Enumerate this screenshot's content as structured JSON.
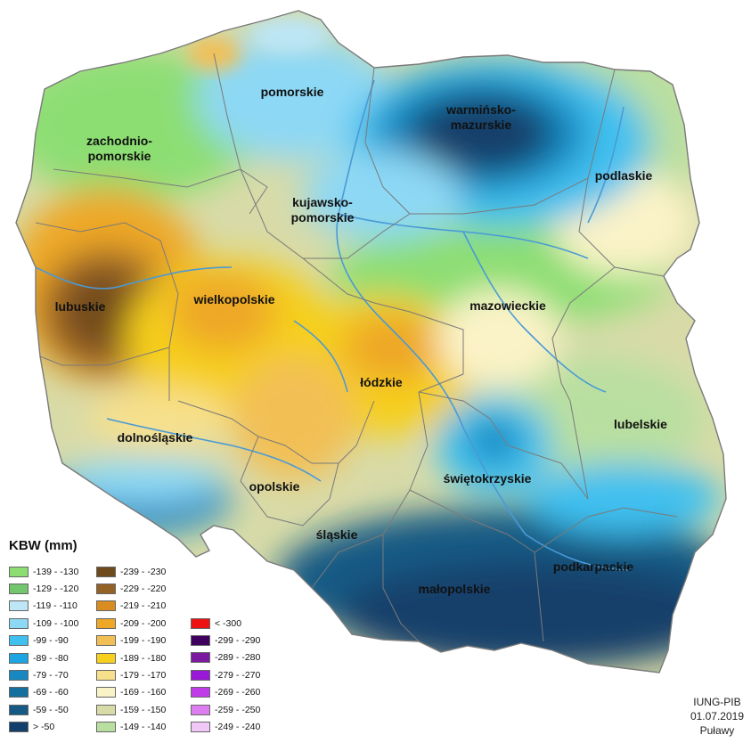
{
  "legend": {
    "title": "KBW (mm)",
    "columns": [
      [
        {
          "label": "-139 - -130",
          "color": "#8cde73"
        },
        {
          "label": "-129 - -120",
          "color": "#74c66c"
        },
        {
          "label": "-119 - -110",
          "color": "#bde6f7"
        },
        {
          "label": "-109 - -100",
          "color": "#8dd8f5"
        },
        {
          "label": "-99 - -90",
          "color": "#3fc0ef"
        },
        {
          "label": "-89 - -80",
          "color": "#1ca5e0"
        },
        {
          "label": "-79 - -70",
          "color": "#1888c0"
        },
        {
          "label": "-69 - -60",
          "color": "#16709f"
        },
        {
          "label": "-59 - -50",
          "color": "#155a84"
        },
        {
          "label": "> -50",
          "color": "#12406a"
        }
      ],
      [
        {
          "label": "-239 - -230",
          "color": "#6f4a1c"
        },
        {
          "label": "-229 - -220",
          "color": "#946126"
        },
        {
          "label": "-219 - -210",
          "color": "#d98c20"
        },
        {
          "label": "-209 - -200",
          "color": "#eea825"
        },
        {
          "label": "-199 - -190",
          "color": "#f2bf55"
        },
        {
          "label": "-189 - -180",
          "color": "#f6cf1f"
        },
        {
          "label": "-179 - -170",
          "color": "#f7e08c"
        },
        {
          "label": "-169 - -160",
          "color": "#fbf3c8"
        },
        {
          "label": "-159 - -150",
          "color": "#d8dba8"
        },
        {
          "label": "-149 - -140",
          "color": "#b9dfa0"
        }
      ],
      [
        {
          "label": "< -300",
          "color": "#ee1111"
        },
        {
          "label": "-299 - -290",
          "color": "#3f0060"
        },
        {
          "label": "-289 - -280",
          "color": "#7a1aa0"
        },
        {
          "label": "-279 - -270",
          "color": "#9a18d8"
        },
        {
          "label": "-269 - -260",
          "color": "#c03ce8"
        },
        {
          "label": "-259 - -250",
          "color": "#dd7ef0"
        },
        {
          "label": "-249 - -240",
          "color": "#efc8f7"
        }
      ]
    ]
  },
  "regions": [
    {
      "name": "pomorskie"
    },
    {
      "name": "warmińsko-\nmazurskie"
    },
    {
      "name": "zachodnio-\npomorskie"
    },
    {
      "name": "podlaskie"
    },
    {
      "name": "kujawsko-\npomorskie"
    },
    {
      "name": "wielkopolskie"
    },
    {
      "name": "lubuskie"
    },
    {
      "name": "mazowieckie"
    },
    {
      "name": "łódzkie"
    },
    {
      "name": "lubelskie"
    },
    {
      "name": "dolnośląskie"
    },
    {
      "name": "świętokrzyskie"
    },
    {
      "name": "opolskie"
    },
    {
      "name": "śląskie"
    },
    {
      "name": "podkarpackie"
    },
    {
      "name": "małopolskie"
    }
  ],
  "credits": {
    "institute": "IUNG-PIB",
    "date": "01.07.2019",
    "place": "Puławy"
  },
  "colors": {
    "border": "#7a7a7a",
    "river": "#4a9ad6",
    "water_body": "#3aa0e8"
  }
}
